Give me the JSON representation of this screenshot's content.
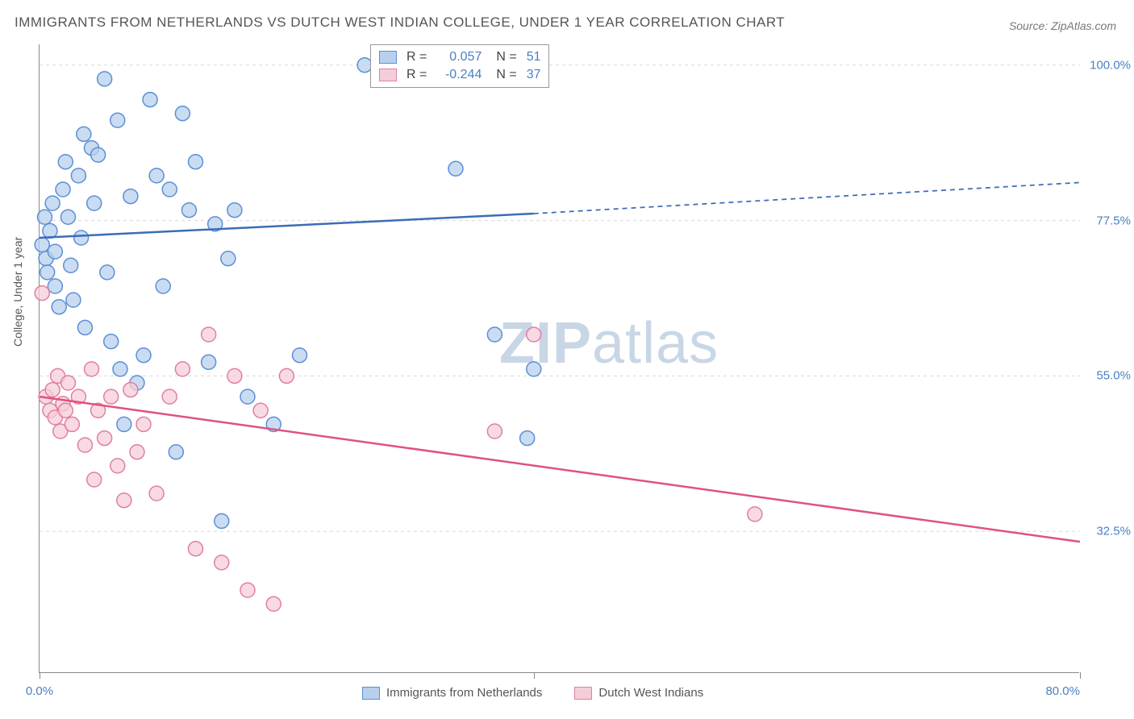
{
  "title": "IMMIGRANTS FROM NETHERLANDS VS DUTCH WEST INDIAN COLLEGE, UNDER 1 YEAR CORRELATION CHART",
  "source": "Source: ZipAtlas.com",
  "ylabel": "College, Under 1 year",
  "watermark_bold": "ZIP",
  "watermark_light": "atlas",
  "legend_top": {
    "series": [
      {
        "swatch_fill": "#b8d0ec",
        "swatch_border": "#5c8fd6",
        "r_label": "R =",
        "r_value": "0.057",
        "n_label": "N =",
        "n_value": "51"
      },
      {
        "swatch_fill": "#f5cdd8",
        "swatch_border": "#e17fa0",
        "r_label": "R =",
        "r_value": "-0.244",
        "n_label": "N =",
        "n_value": "37"
      }
    ]
  },
  "legend_bottom": {
    "items": [
      {
        "swatch_fill": "#b8d0ec",
        "swatch_border": "#5c8fd6",
        "label": "Immigrants from Netherlands"
      },
      {
        "swatch_fill": "#f5cdd8",
        "swatch_border": "#e17fa0",
        "label": "Dutch West Indians"
      }
    ]
  },
  "chart": {
    "type": "scatter",
    "background_color": "#ffffff",
    "grid_color": "#d8d8d8",
    "axis_color": "#888888",
    "xlim": [
      0,
      80
    ],
    "ylim": [
      12,
      103
    ],
    "xticks": [
      0,
      38,
      80
    ],
    "xtick_labels": {
      "0": "0.0%",
      "80": "80.0%"
    },
    "ygrid": [
      32.5,
      55.0,
      77.5,
      100.0
    ],
    "ytick_labels": [
      "32.5%",
      "55.0%",
      "77.5%",
      "100.0%"
    ],
    "series_blue": {
      "fill": "#b8d0ec",
      "stroke": "#5c8fd6",
      "opacity": 0.75,
      "r": 9,
      "points": [
        [
          0.2,
          74
        ],
        [
          0.4,
          78
        ],
        [
          0.5,
          72
        ],
        [
          0.6,
          70
        ],
        [
          0.8,
          76
        ],
        [
          1.0,
          80
        ],
        [
          1.2,
          73
        ],
        [
          1.2,
          68
        ],
        [
          1.5,
          65
        ],
        [
          1.8,
          82
        ],
        [
          2.0,
          86
        ],
        [
          2.2,
          78
        ],
        [
          2.4,
          71
        ],
        [
          2.6,
          66
        ],
        [
          3.0,
          84
        ],
        [
          3.2,
          75
        ],
        [
          3.4,
          90
        ],
        [
          3.5,
          62
        ],
        [
          4.0,
          88
        ],
        [
          4.2,
          80
        ],
        [
          4.5,
          87
        ],
        [
          5.0,
          98
        ],
        [
          5.2,
          70
        ],
        [
          5.5,
          60
        ],
        [
          6.0,
          92
        ],
        [
          6.2,
          56
        ],
        [
          6.5,
          48
        ],
        [
          7.0,
          81
        ],
        [
          7.5,
          54
        ],
        [
          8.0,
          58
        ],
        [
          8.5,
          95
        ],
        [
          9.0,
          84
        ],
        [
          9.5,
          68
        ],
        [
          10.0,
          82
        ],
        [
          10.5,
          44
        ],
        [
          11.0,
          93
        ],
        [
          11.5,
          79
        ],
        [
          12.0,
          86
        ],
        [
          13.0,
          57
        ],
        [
          13.5,
          77
        ],
        [
          14.0,
          34
        ],
        [
          14.5,
          72
        ],
        [
          15.0,
          79
        ],
        [
          16.0,
          52
        ],
        [
          18.0,
          48
        ],
        [
          20.0,
          58
        ],
        [
          25.0,
          100
        ],
        [
          32.0,
          85
        ],
        [
          35.0,
          61
        ],
        [
          37.5,
          46
        ],
        [
          38.0,
          56
        ]
      ],
      "trend": {
        "x1": 0,
        "y1": 75,
        "x2": 38,
        "y2": 78.5,
        "x_ext": 80,
        "y_ext": 83,
        "color": "#3c6cb8",
        "width": 2.5
      }
    },
    "series_pink": {
      "fill": "#f5cdd8",
      "stroke": "#e17fa0",
      "opacity": 0.75,
      "r": 9,
      "points": [
        [
          0.2,
          67
        ],
        [
          0.5,
          52
        ],
        [
          0.8,
          50
        ],
        [
          1.0,
          53
        ],
        [
          1.2,
          49
        ],
        [
          1.4,
          55
        ],
        [
          1.6,
          47
        ],
        [
          1.8,
          51
        ],
        [
          2.0,
          50
        ],
        [
          2.2,
          54
        ],
        [
          2.5,
          48
        ],
        [
          3.0,
          52
        ],
        [
          3.5,
          45
        ],
        [
          4.0,
          56
        ],
        [
          4.2,
          40
        ],
        [
          4.5,
          50
        ],
        [
          5.0,
          46
        ],
        [
          5.5,
          52
        ],
        [
          6.0,
          42
        ],
        [
          6.5,
          37
        ],
        [
          7.0,
          53
        ],
        [
          7.5,
          44
        ],
        [
          8.0,
          48
        ],
        [
          9.0,
          38
        ],
        [
          10.0,
          52
        ],
        [
          11.0,
          56
        ],
        [
          12.0,
          30
        ],
        [
          13.0,
          61
        ],
        [
          14.0,
          28
        ],
        [
          15.0,
          55
        ],
        [
          16.0,
          24
        ],
        [
          17.0,
          50
        ],
        [
          18.0,
          22
        ],
        [
          19.0,
          55
        ],
        [
          35.0,
          47
        ],
        [
          55.0,
          35
        ],
        [
          38.0,
          61
        ]
      ],
      "trend": {
        "x1": 0,
        "y1": 52,
        "x2": 80,
        "y2": 31,
        "color": "#e0527d",
        "width": 2.5
      }
    }
  }
}
